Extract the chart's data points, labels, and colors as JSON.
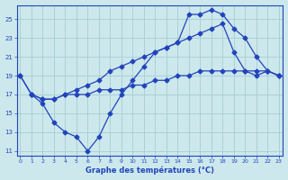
{
  "title": "Graphe des températures (°C)",
  "background_color": "#cce8ec",
  "grid_color": "#a8ccd4",
  "line_color": "#2244bb",
  "xlim": [
    -0.3,
    23.3
  ],
  "ylim": [
    10.5,
    26.5
  ],
  "yticks": [
    11,
    13,
    15,
    17,
    19,
    21,
    23,
    25
  ],
  "xticks": [
    0,
    1,
    2,
    3,
    4,
    5,
    6,
    7,
    8,
    9,
    10,
    11,
    12,
    13,
    14,
    15,
    16,
    17,
    18,
    19,
    20,
    21,
    22,
    23
  ],
  "line1_x": [
    0,
    1,
    2,
    3,
    4,
    5,
    6,
    7,
    8,
    9,
    10,
    11,
    12,
    13,
    14,
    15,
    16,
    17,
    18,
    19,
    20,
    21,
    22,
    23
  ],
  "line1_y": [
    19.0,
    17.0,
    16.0,
    14.0,
    13.0,
    12.5,
    11.0,
    12.5,
    15.0,
    17.0,
    18.5,
    20.0,
    21.5,
    22.0,
    22.5,
    25.5,
    25.5,
    26.0,
    25.5,
    24.0,
    23.0,
    21.0,
    19.5,
    19.0
  ],
  "line2_x": [
    0,
    1,
    2,
    3,
    4,
    5,
    6,
    7,
    8,
    9,
    10,
    11,
    12,
    13,
    14,
    15,
    16,
    17,
    18,
    19,
    20,
    21,
    22,
    23
  ],
  "line2_y": [
    19.0,
    17.0,
    16.5,
    16.5,
    17.0,
    17.5,
    18.0,
    18.5,
    19.5,
    20.0,
    20.5,
    21.0,
    21.5,
    22.0,
    22.5,
    23.0,
    23.5,
    24.0,
    24.5,
    21.5,
    19.5,
    19.0,
    19.5,
    19.0
  ],
  "line3_x": [
    1,
    2,
    3,
    4,
    5,
    6,
    7,
    8,
    9,
    10,
    11,
    12,
    13,
    14,
    15,
    16,
    17,
    18,
    19,
    20,
    21,
    22,
    23
  ],
  "line3_y": [
    17.0,
    16.5,
    16.5,
    17.0,
    17.0,
    17.0,
    17.5,
    17.5,
    17.5,
    18.0,
    18.0,
    18.5,
    18.5,
    19.0,
    19.0,
    19.5,
    19.5,
    19.5,
    19.5,
    19.5,
    19.5,
    19.5,
    19.0
  ]
}
